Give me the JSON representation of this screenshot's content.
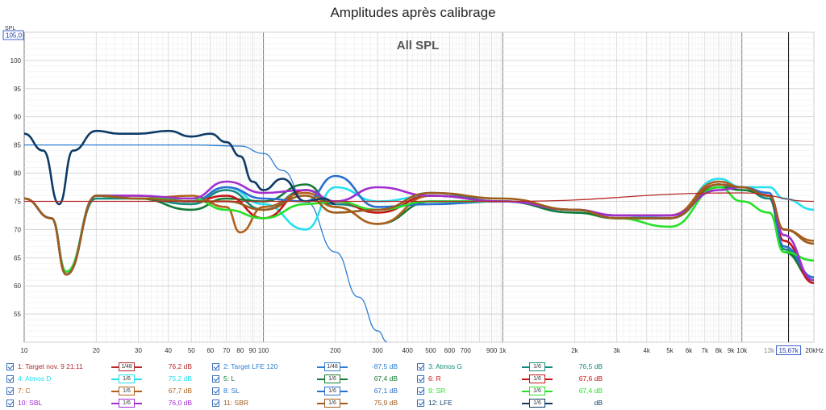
{
  "window_title": "Amplitudes après calibrage",
  "chart_data": {
    "type": "line",
    "title": "All SPL",
    "xscale": "log",
    "xlim": [
      10,
      20000
    ],
    "ylim": [
      50,
      105
    ],
    "ylabel": "SPL",
    "x_unit": "Hz",
    "y_top_readout": "105,0",
    "cursor_readout": "15,67k",
    "x_tick_labels": [
      "10",
      "20",
      "30",
      "40",
      "50",
      "60",
      "70",
      "80",
      "90",
      "100",
      "200",
      "300",
      "400",
      "500",
      "600",
      "700",
      "900",
      "1k",
      "2k",
      "3k",
      "4k",
      "5k",
      "6k",
      "7k",
      "8k",
      "9k",
      "10k",
      "13k",
      "15,67k",
      "20kHz"
    ],
    "y_tick_labels": [
      "55",
      "60",
      "65",
      "70",
      "75",
      "80",
      "85",
      "90",
      "95",
      "100"
    ],
    "grid": true,
    "series": [
      {
        "name": "1: Target nov. 9 21:11",
        "color": "#b42a2a",
        "smoothing": "1/48",
        "value": "76,2 dB",
        "x": [
          10,
          100,
          1000,
          10000,
          20000
        ],
        "y": [
          75,
          75,
          75,
          76.5,
          75
        ]
      },
      {
        "name": "2: Target LFE 120",
        "color": "#2b7fd4",
        "smoothing": "1/48",
        "value": "-87,5 dB",
        "x": [
          10,
          20,
          50,
          80,
          100,
          120,
          150,
          200,
          250,
          300,
          330
        ],
        "y": [
          85,
          85,
          85,
          84.8,
          83.5,
          80.5,
          75,
          66,
          58,
          52,
          50
        ]
      },
      {
        "name": "3: Atmos G",
        "color": "#128a7c",
        "smoothing": "1/6",
        "value": "76,5 dB",
        "x": [
          10,
          13,
          15,
          20,
          30,
          50,
          70,
          100,
          150,
          200,
          300,
          500,
          1000,
          2000,
          3000,
          5000,
          8000,
          10000,
          13000,
          15000,
          20000
        ],
        "y": [
          75.5,
          72,
          62.5,
          75.5,
          75.5,
          74.5,
          77,
          73.5,
          77,
          74.5,
          73.5,
          76.5,
          75,
          73.5,
          72,
          72,
          77.5,
          77.5,
          75.5,
          66.5,
          61
        ]
      },
      {
        "name": "4: Atmos D",
        "color": "#22e0f0",
        "smoothing": "1/6",
        "value": "75,2 dB",
        "x": [
          10,
          13,
          15,
          20,
          30,
          50,
          70,
          100,
          150,
          200,
          300,
          500,
          1000,
          2000,
          3000,
          5000,
          8000,
          10000,
          13000,
          15000,
          20000
        ],
        "y": [
          75.5,
          72,
          62.5,
          76,
          75.5,
          75,
          77.5,
          74.5,
          70,
          77.5,
          75,
          76,
          75,
          73,
          72.5,
          72,
          79,
          77.5,
          77.5,
          75.5,
          73.5
        ]
      },
      {
        "name": "5: L",
        "color": "#137a35",
        "smoothing": "1/6",
        "value": "67,4 dB",
        "x": [
          10,
          13,
          15,
          20,
          30,
          50,
          70,
          100,
          150,
          200,
          300,
          500,
          1000,
          2000,
          3000,
          5000,
          8000,
          10000,
          13000,
          15000,
          20000
        ],
        "y": [
          75.5,
          72,
          62,
          76,
          75.5,
          73.5,
          75.5,
          75,
          78,
          74,
          71,
          75,
          75,
          73,
          72,
          72,
          77.5,
          77,
          76,
          66,
          61
        ]
      },
      {
        "name": "6: R",
        "color": "#c41515",
        "smoothing": "1/6",
        "value": "67,6 dB",
        "x": [
          10,
          13,
          15,
          20,
          30,
          50,
          70,
          100,
          150,
          200,
          300,
          500,
          1000,
          2000,
          3000,
          5000,
          8000,
          10000,
          13000,
          15000,
          20000
        ],
        "y": [
          75.5,
          72,
          62,
          76,
          76,
          75,
          76,
          72,
          77,
          75,
          73,
          76,
          75,
          73.5,
          72.5,
          72.5,
          78,
          77.5,
          76,
          68,
          60.5
        ]
      },
      {
        "name": "7: C",
        "color": "#b2601a",
        "smoothing": "1/6",
        "value": "67,7 dB",
        "x": [
          10,
          13,
          15,
          20,
          30,
          50,
          70,
          80,
          100,
          150,
          200,
          300,
          500,
          1000,
          2000,
          3000,
          5000,
          8000,
          10000,
          13000,
          15000,
          20000
        ],
        "y": [
          75.5,
          72,
          62,
          76,
          75.5,
          76,
          74,
          69.5,
          74,
          76.5,
          74,
          71,
          76,
          75,
          73.5,
          72.5,
          72.5,
          78.5,
          77.5,
          76,
          70,
          68
        ]
      },
      {
        "name": "8: SL",
        "color": "#2a6fd0",
        "smoothing": "1/6",
        "value": "67,1 dB",
        "x": [
          10,
          13,
          15,
          20,
          30,
          50,
          70,
          100,
          150,
          200,
          300,
          500,
          1000,
          2000,
          3000,
          5000,
          8000,
          10000,
          13000,
          15000,
          20000
        ],
        "y": [
          75.5,
          72,
          62.5,
          76,
          75.5,
          75,
          77.5,
          75.5,
          75,
          79.5,
          74,
          74.5,
          75,
          73.5,
          72,
          72,
          78,
          77.5,
          76.5,
          67,
          61.5
        ]
      },
      {
        "name": "9: SR",
        "color": "#27e027",
        "smoothing": "1/6",
        "value": "67,4 dB",
        "x": [
          10,
          13,
          15,
          20,
          30,
          50,
          70,
          100,
          150,
          200,
          300,
          500,
          1000,
          2000,
          3000,
          5000,
          8000,
          10000,
          13000,
          15000,
          20000
        ],
        "y": [
          75.5,
          72,
          62.5,
          76,
          75.5,
          75.5,
          73.5,
          72,
          74.5,
          75,
          73.5,
          75,
          75,
          73.5,
          72,
          70.5,
          77.5,
          75,
          73,
          66,
          64.5
        ]
      },
      {
        "name": "10: SBL",
        "color": "#a22dd0",
        "smoothing": "1/6",
        "value": "76,0 dB",
        "x": [
          10,
          13,
          15,
          20,
          30,
          50,
          70,
          100,
          150,
          200,
          300,
          500,
          1000,
          2000,
          3000,
          5000,
          8000,
          10000,
          13000,
          15000,
          20000
        ],
        "y": [
          75.5,
          72,
          62,
          76,
          76,
          75.5,
          78.5,
          76.5,
          77,
          75,
          77.5,
          76,
          75,
          73.5,
          72.5,
          72.5,
          77,
          77.5,
          76,
          69,
          61
        ]
      },
      {
        "name": "11: SBR",
        "color": "#9c5d1c",
        "smoothing": "1/6",
        "value": "75,9 dB",
        "x": [
          10,
          13,
          15,
          20,
          30,
          50,
          70,
          100,
          150,
          200,
          300,
          500,
          1000,
          2000,
          3000,
          5000,
          8000,
          10000,
          13000,
          15000,
          20000
        ],
        "y": [
          75.5,
          72,
          62,
          76,
          75.5,
          75,
          75,
          73.5,
          76,
          73,
          73.5,
          76.5,
          75.5,
          73.5,
          72,
          72,
          78,
          77.5,
          76,
          70,
          67.5
        ]
      },
      {
        "name": "12: LFE",
        "color": "#0d3b66",
        "smoothing": "1/6",
        "value": "dB",
        "x": [
          10,
          12,
          14,
          16,
          20,
          25,
          30,
          40,
          50,
          60,
          70,
          80,
          90,
          100,
          120,
          150,
          180,
          200
        ],
        "y": [
          87,
          84,
          74.5,
          84,
          87.5,
          87,
          87,
          87.5,
          86.5,
          87,
          85.5,
          83,
          78.5,
          77,
          79,
          75,
          75.5,
          74.5
        ]
      }
    ]
  }
}
